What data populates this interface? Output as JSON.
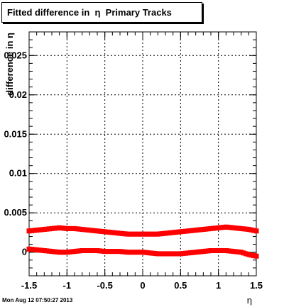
{
  "chart_data": {
    "type": "scatter",
    "title": "Fitted difference in  η  Primary Tracks",
    "xlabel": "η",
    "ylabel": "difference in η",
    "xlim": [
      -1.5,
      1.5
    ],
    "ylim": [
      -0.003,
      0.028
    ],
    "x_ticks": [
      -1.5,
      -1,
      -0.5,
      0,
      0.5,
      1,
      1.5
    ],
    "x_tick_labels": [
      "-1.5",
      "-1",
      "-0.5",
      "0",
      "0.5",
      "1",
      "1.5"
    ],
    "y_ticks": [
      0,
      0.005,
      0.01,
      0.015,
      0.02,
      0.025
    ],
    "y_tick_labels": [
      "0",
      "0.005",
      "0.01",
      "0.015",
      "0.02",
      "0.025"
    ],
    "grid": true,
    "series": [
      {
        "color": "#ff0000",
        "x": [
          -1.5,
          -1.4,
          -1.3,
          -1.2,
          -1.1,
          -1.0,
          -0.9,
          -0.8,
          -0.7,
          -0.6,
          -0.5,
          -0.4,
          -0.3,
          -0.2,
          -0.1,
          0.0,
          0.1,
          0.2,
          0.3,
          0.4,
          0.5,
          0.6,
          0.7,
          0.8,
          0.9,
          1.0,
          1.1,
          1.2,
          1.3,
          1.4,
          1.5
        ],
        "values": [
          0.0027,
          0.0028,
          0.0029,
          0.003,
          0.0031,
          0.003,
          0.003,
          0.0029,
          0.0028,
          0.0027,
          0.0026,
          0.0025,
          0.0024,
          0.0023,
          0.0023,
          0.0023,
          0.0023,
          0.0023,
          0.0024,
          0.0025,
          0.0026,
          0.0027,
          0.0028,
          0.0029,
          0.003,
          0.0031,
          0.0032,
          0.0031,
          0.003,
          0.0029,
          0.0027
        ]
      },
      {
        "color": "#ff0000",
        "x": [
          -1.5,
          -1.4,
          -1.3,
          -1.2,
          -1.1,
          -1.0,
          -0.9,
          -0.8,
          -0.7,
          -0.6,
          -0.5,
          -0.4,
          -0.3,
          -0.2,
          -0.1,
          0.0,
          0.1,
          0.2,
          0.3,
          0.4,
          0.5,
          0.6,
          0.7,
          0.8,
          0.9,
          1.0,
          1.1,
          1.2,
          1.3,
          1.4,
          1.5
        ],
        "values": [
          0.0004,
          0.0003,
          0.0002,
          0.0001,
          0.0,
          0.0,
          0.0001,
          0.0002,
          0.0002,
          0.0002,
          0.0001,
          0.0001,
          0.0001,
          0.0,
          0.0,
          0.0,
          -0.0001,
          -0.0002,
          -0.0002,
          -0.0002,
          -0.0002,
          -0.0001,
          0.0,
          0.0001,
          0.0002,
          0.0002,
          0.0002,
          0.0001,
          0.0,
          -0.0003,
          -0.0005
        ]
      }
    ]
  },
  "footer": {
    "timestamp": "Mon Aug 12 07:50:27 2013"
  }
}
